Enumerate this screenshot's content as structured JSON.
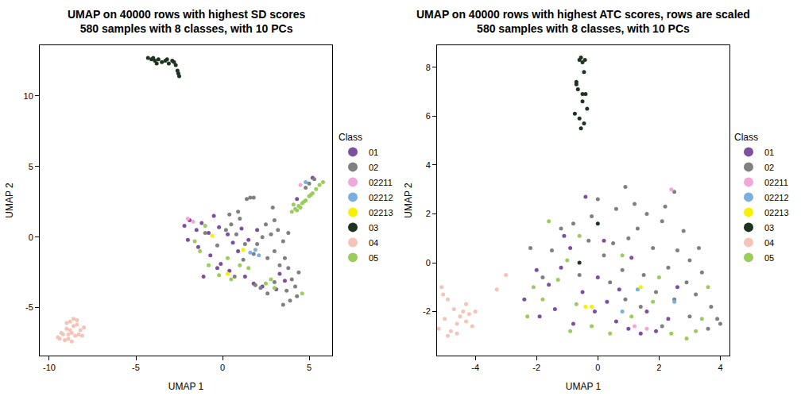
{
  "chart_data": [
    {
      "type": "scatter",
      "title": "UMAP on 40000 rows with highest SD scores",
      "subtitle": "580 samples with 8 classes, with 10 PCs",
      "x_label": "UMAP 1",
      "y_label": "UMAP 2",
      "legend_title": "Class",
      "legend": "right",
      "grid": false,
      "marker": "circle",
      "xlim": [
        -10.55,
        6.33
      ],
      "xticks": [
        -10,
        -5,
        0,
        5
      ],
      "ylim": [
        -8.4,
        13.6
      ],
      "yticks": [
        -5,
        0,
        5,
        10
      ],
      "series": [
        {
          "name": "01",
          "color": "#7E4F9E",
          "x": [
            -2.2,
            -1.9,
            -1.5,
            -1.2,
            -0.8,
            -0.5,
            -0.2,
            0.3,
            0.6,
            1.1,
            -1.4,
            -0.7,
            -0.1,
            0.4,
            1.5,
            2.0,
            1.3,
            1.8,
            2.3,
            3.1,
            3.6,
            -2.0,
            -0.3,
            0.9,
            5.2,
            4.3,
            3.3,
            -1.1
          ],
          "y": [
            0.8,
            1.2,
            0.5,
            1.0,
            0.3,
            1.5,
            0.7,
            0.2,
            -0.4,
            0.6,
            -0.7,
            -1.3,
            -1.9,
            -2.4,
            -0.2,
            0.5,
            -2.8,
            -3.3,
            -3.5,
            -3.7,
            -3.1,
            -0.2,
            -2.2,
            -1.0,
            4.2,
            2.7,
            -2.6,
            -2.8
          ]
        },
        {
          "name": "02",
          "color": "#808080",
          "x": [
            1.4,
            1.6,
            1.8,
            2.5,
            3.0,
            3.2,
            2.8,
            2.3,
            2.0,
            3.5,
            3.8,
            1.8,
            2.6,
            3.0,
            1.3,
            0.8,
            0.5,
            1.0,
            0.2,
            -0.3,
            3.3,
            3.6,
            3.8,
            4.0,
            4.2,
            4.3,
            3.9,
            3.5,
            4.4,
            3.7,
            1.9,
            2.2,
            2.6,
            3.0,
            0.7,
            1.2,
            0.9,
            0.4,
            5.0,
            5.3,
            4.8,
            -1.0,
            2.9
          ],
          "y": [
            2.7,
            2.8,
            2.8,
            0.9,
            1.2,
            0.5,
            0.2,
            0.0,
            -0.5,
            -0.3,
            0.3,
            -1.2,
            -1.5,
            -1.0,
            -0.5,
            0.2,
            0.9,
            1.3,
            0.5,
            -0.6,
            -2.0,
            -1.5,
            -2.2,
            -3.0,
            -3.5,
            -4.2,
            -4.5,
            -4.8,
            -2.5,
            -3.8,
            -3.4,
            -3.6,
            -4.0,
            -3.2,
            -2.8,
            -1.6,
            1.8,
            1.6,
            3.8,
            4.1,
            3.5,
            0.3,
            2.1
          ]
        },
        {
          "name": "02211",
          "color": "#F2A7DA",
          "x": [
            -2.0,
            4.5,
            -1.7
          ],
          "y": [
            1.3,
            3.7,
            1.1
          ]
        },
        {
          "name": "02212",
          "color": "#7BAFDE",
          "x": [
            1.6,
            1.9,
            2.1,
            4.8
          ],
          "y": [
            -1.1,
            -0.9,
            -1.3,
            3.9
          ]
        },
        {
          "name": "02213",
          "color": "#F7F000",
          "x": [
            0.3,
            1.2,
            -0.6
          ],
          "y": [
            -2.6,
            -0.9,
            0.1
          ]
        },
        {
          "name": "03",
          "color": "#1E3320",
          "x": [
            -4.3,
            -4.1,
            -3.9,
            -3.7,
            -3.5,
            -3.3,
            -3.1,
            -2.9,
            -2.7,
            -2.6,
            -2.5,
            -3.8,
            -3.2,
            -2.8,
            -2.55,
            -4.0
          ],
          "y": [
            12.7,
            12.6,
            12.5,
            12.6,
            12.4,
            12.5,
            12.3,
            12.5,
            12.2,
            11.8,
            11.4,
            12.3,
            12.6,
            12.4,
            11.6,
            12.7
          ]
        },
        {
          "name": "04",
          "color": "#F6C3B9",
          "x": [
            -9.5,
            -9.2,
            -9.0,
            -8.8,
            -8.6,
            -8.4,
            -8.2,
            -8.0,
            -8.9,
            -8.7,
            -8.5,
            -9.3,
            -9.1,
            -8.3,
            -8.6,
            -8.8,
            -9.0,
            -8.4,
            -8.1,
            -9.4,
            -8.7,
            -8.9
          ],
          "y": [
            -7.1,
            -6.9,
            -6.5,
            -6.0,
            -5.8,
            -6.2,
            -6.6,
            -6.4,
            -7.2,
            -6.8,
            -7.0,
            -6.8,
            -7.3,
            -6.9,
            -6.3,
            -6.6,
            -6.1,
            -5.9,
            -7.0,
            -7.2,
            -7.4,
            -6.9
          ]
        },
        {
          "name": "05",
          "color": "#9ACD5B",
          "x": [
            4.0,
            4.2,
            4.4,
            4.6,
            4.8,
            5.0,
            5.2,
            5.4,
            5.6,
            5.8,
            4.3,
            4.7,
            5.1,
            4.1,
            4.5,
            -1.3,
            -0.8,
            -0.2,
            0.5,
            1.0,
            2.5,
            3.0,
            2.8,
            -1.0,
            0.3,
            1.5,
            -1.6,
            4.6
          ],
          "y": [
            1.8,
            2.0,
            2.2,
            2.4,
            2.6,
            2.9,
            3.1,
            3.4,
            3.7,
            3.9,
            1.9,
            2.5,
            3.0,
            2.3,
            2.1,
            -1.0,
            -2.0,
            -2.7,
            -3.0,
            -2.0,
            -3.3,
            -3.6,
            -3.0,
            0.8,
            -1.5,
            -2.2,
            -0.3,
            -4.0
          ]
        }
      ]
    },
    {
      "type": "scatter",
      "title": "UMAP on 40000 rows with highest ATC scores, rows are scaled",
      "subtitle": "580 samples with 8 classes, with 10 PCs",
      "x_label": "UMAP 1",
      "y_label": "UMAP 2",
      "legend_title": "Class",
      "legend": "right",
      "grid": false,
      "marker": "circle",
      "xlim": [
        -5.25,
        4.3
      ],
      "xticks": [
        -4,
        -2,
        0,
        2,
        4
      ],
      "ylim": [
        -3.8,
        8.9
      ],
      "yticks": [
        -2,
        0,
        2,
        4,
        6,
        8
      ],
      "series": [
        {
          "name": "01",
          "color": "#7E4F9E",
          "x": [
            -2.0,
            -1.6,
            -1.2,
            -0.9,
            -0.5,
            -0.1,
            0.3,
            0.6,
            1.0,
            1.4,
            1.9,
            2.3,
            -1.4,
            -0.8,
            -1.1,
            0.2,
            1.1,
            0.0,
            -1.9,
            -0.4,
            2.6,
            -2.4,
            0.7,
            1.6
          ],
          "y": [
            -0.3,
            -0.9,
            -0.2,
            0.6,
            -1.2,
            -2.0,
            -1.6,
            -2.4,
            -2.7,
            -2.9,
            -2.8,
            -2.3,
            -1.9,
            -2.5,
            1.1,
            0.9,
            0.2,
            -0.6,
            -2.2,
            2.7,
            -1.0,
            -1.5,
            -1.1,
            -2.0
          ]
        },
        {
          "name": "02",
          "color": "#808080",
          "x": [
            0.9,
            1.2,
            1.6,
            2.1,
            2.5,
            2.2,
            1.0,
            0.5,
            1.8,
            2.6,
            3.0,
            3.4,
            2.9,
            2.3,
            1.5,
            0.8,
            0.2,
            -0.3,
            -0.8,
            -1.2,
            0.6,
            1.9,
            2.5,
            3.2,
            3.7,
            3.9,
            4.0,
            3.6,
            3.0,
            2.1,
            1.4,
            0.9,
            0.4,
            -0.6,
            -1.5,
            -2.2,
            -1.8,
            3.3,
            1.3,
            2.8,
            0.0,
            -0.2
          ],
          "y": [
            3.1,
            2.4,
            2.0,
            1.7,
            2.9,
            2.3,
            1.0,
            0.8,
            0.6,
            0.5,
            0.1,
            -0.4,
            -0.8,
            -0.2,
            -0.5,
            -0.3,
            0.3,
            0.9,
            1.6,
            1.4,
            2.2,
            -1.2,
            -1.5,
            -1.3,
            -1.8,
            -2.3,
            -2.5,
            -2.7,
            -2.2,
            -2.6,
            -1.8,
            -1.5,
            -0.8,
            -0.5,
            0.5,
            0.6,
            -0.6,
            0.6,
            1.4,
            1.3,
            2.6,
            1.9
          ]
        },
        {
          "name": "02211",
          "color": "#F2A7DA",
          "x": [
            1.2,
            1.6,
            2.4
          ],
          "y": [
            -2.6,
            -2.7,
            3.0
          ]
        },
        {
          "name": "02212",
          "color": "#7BAFDE",
          "x": [
            0.8,
            2.5,
            1.3
          ],
          "y": [
            -2.0,
            -1.6,
            -1.1
          ]
        },
        {
          "name": "02213",
          "color": "#F7F000",
          "x": [
            1.4,
            -0.4,
            -0.2
          ],
          "y": [
            -1.0,
            -1.8,
            -1.8
          ]
        },
        {
          "name": "03",
          "color": "#1E3320",
          "x": [
            -0.6,
            -0.55,
            -0.5,
            -0.45,
            -0.7,
            -0.65,
            -0.4,
            -0.5,
            -0.75,
            -0.6,
            -0.45,
            -0.55,
            -0.35,
            -0.7,
            -0.5,
            -0.42,
            0.0,
            -0.6
          ],
          "y": [
            8.3,
            8.4,
            8.2,
            7.8,
            7.4,
            7.1,
            6.9,
            6.6,
            6.1,
            5.9,
            5.7,
            5.5,
            6.3,
            7.3,
            6.9,
            8.3,
            1.6,
            0.0
          ]
        },
        {
          "name": "04",
          "color": "#F6C3B9",
          "x": [
            -5.1,
            -4.9,
            -4.7,
            -4.5,
            -4.3,
            -4.1,
            -5.0,
            -4.8,
            -4.6,
            -4.4,
            -5.2,
            -4.2,
            -4.0,
            -4.9,
            -4.6,
            -4.3,
            -5.05,
            -3.3,
            -3.0
          ],
          "y": [
            -1.0,
            -1.5,
            -1.9,
            -2.2,
            -2.4,
            -2.6,
            -2.3,
            -2.8,
            -2.5,
            -2.0,
            -2.7,
            -2.1,
            -2.0,
            -3.0,
            -2.9,
            -1.7,
            -1.3,
            -1.1,
            -0.5
          ]
        },
        {
          "name": "05",
          "color": "#9ACD5B",
          "x": [
            -2.3,
            -1.8,
            -1.3,
            -1.0,
            -0.7,
            -0.2,
            0.4,
            1.1,
            1.8,
            2.4,
            2.9,
            3.4,
            3.6,
            -1.6,
            -0.6,
            -2.1,
            0.8,
            2.0,
            -0.9,
            3.2
          ],
          "y": [
            -2.2,
            -1.5,
            -0.7,
            0.1,
            -1.7,
            -2.6,
            -2.9,
            -2.2,
            -1.6,
            -2.9,
            -3.1,
            -2.3,
            -1.0,
            1.7,
            1.1,
            -1.0,
            0.3,
            -0.6,
            -2.8,
            -2.8
          ]
        }
      ]
    }
  ]
}
